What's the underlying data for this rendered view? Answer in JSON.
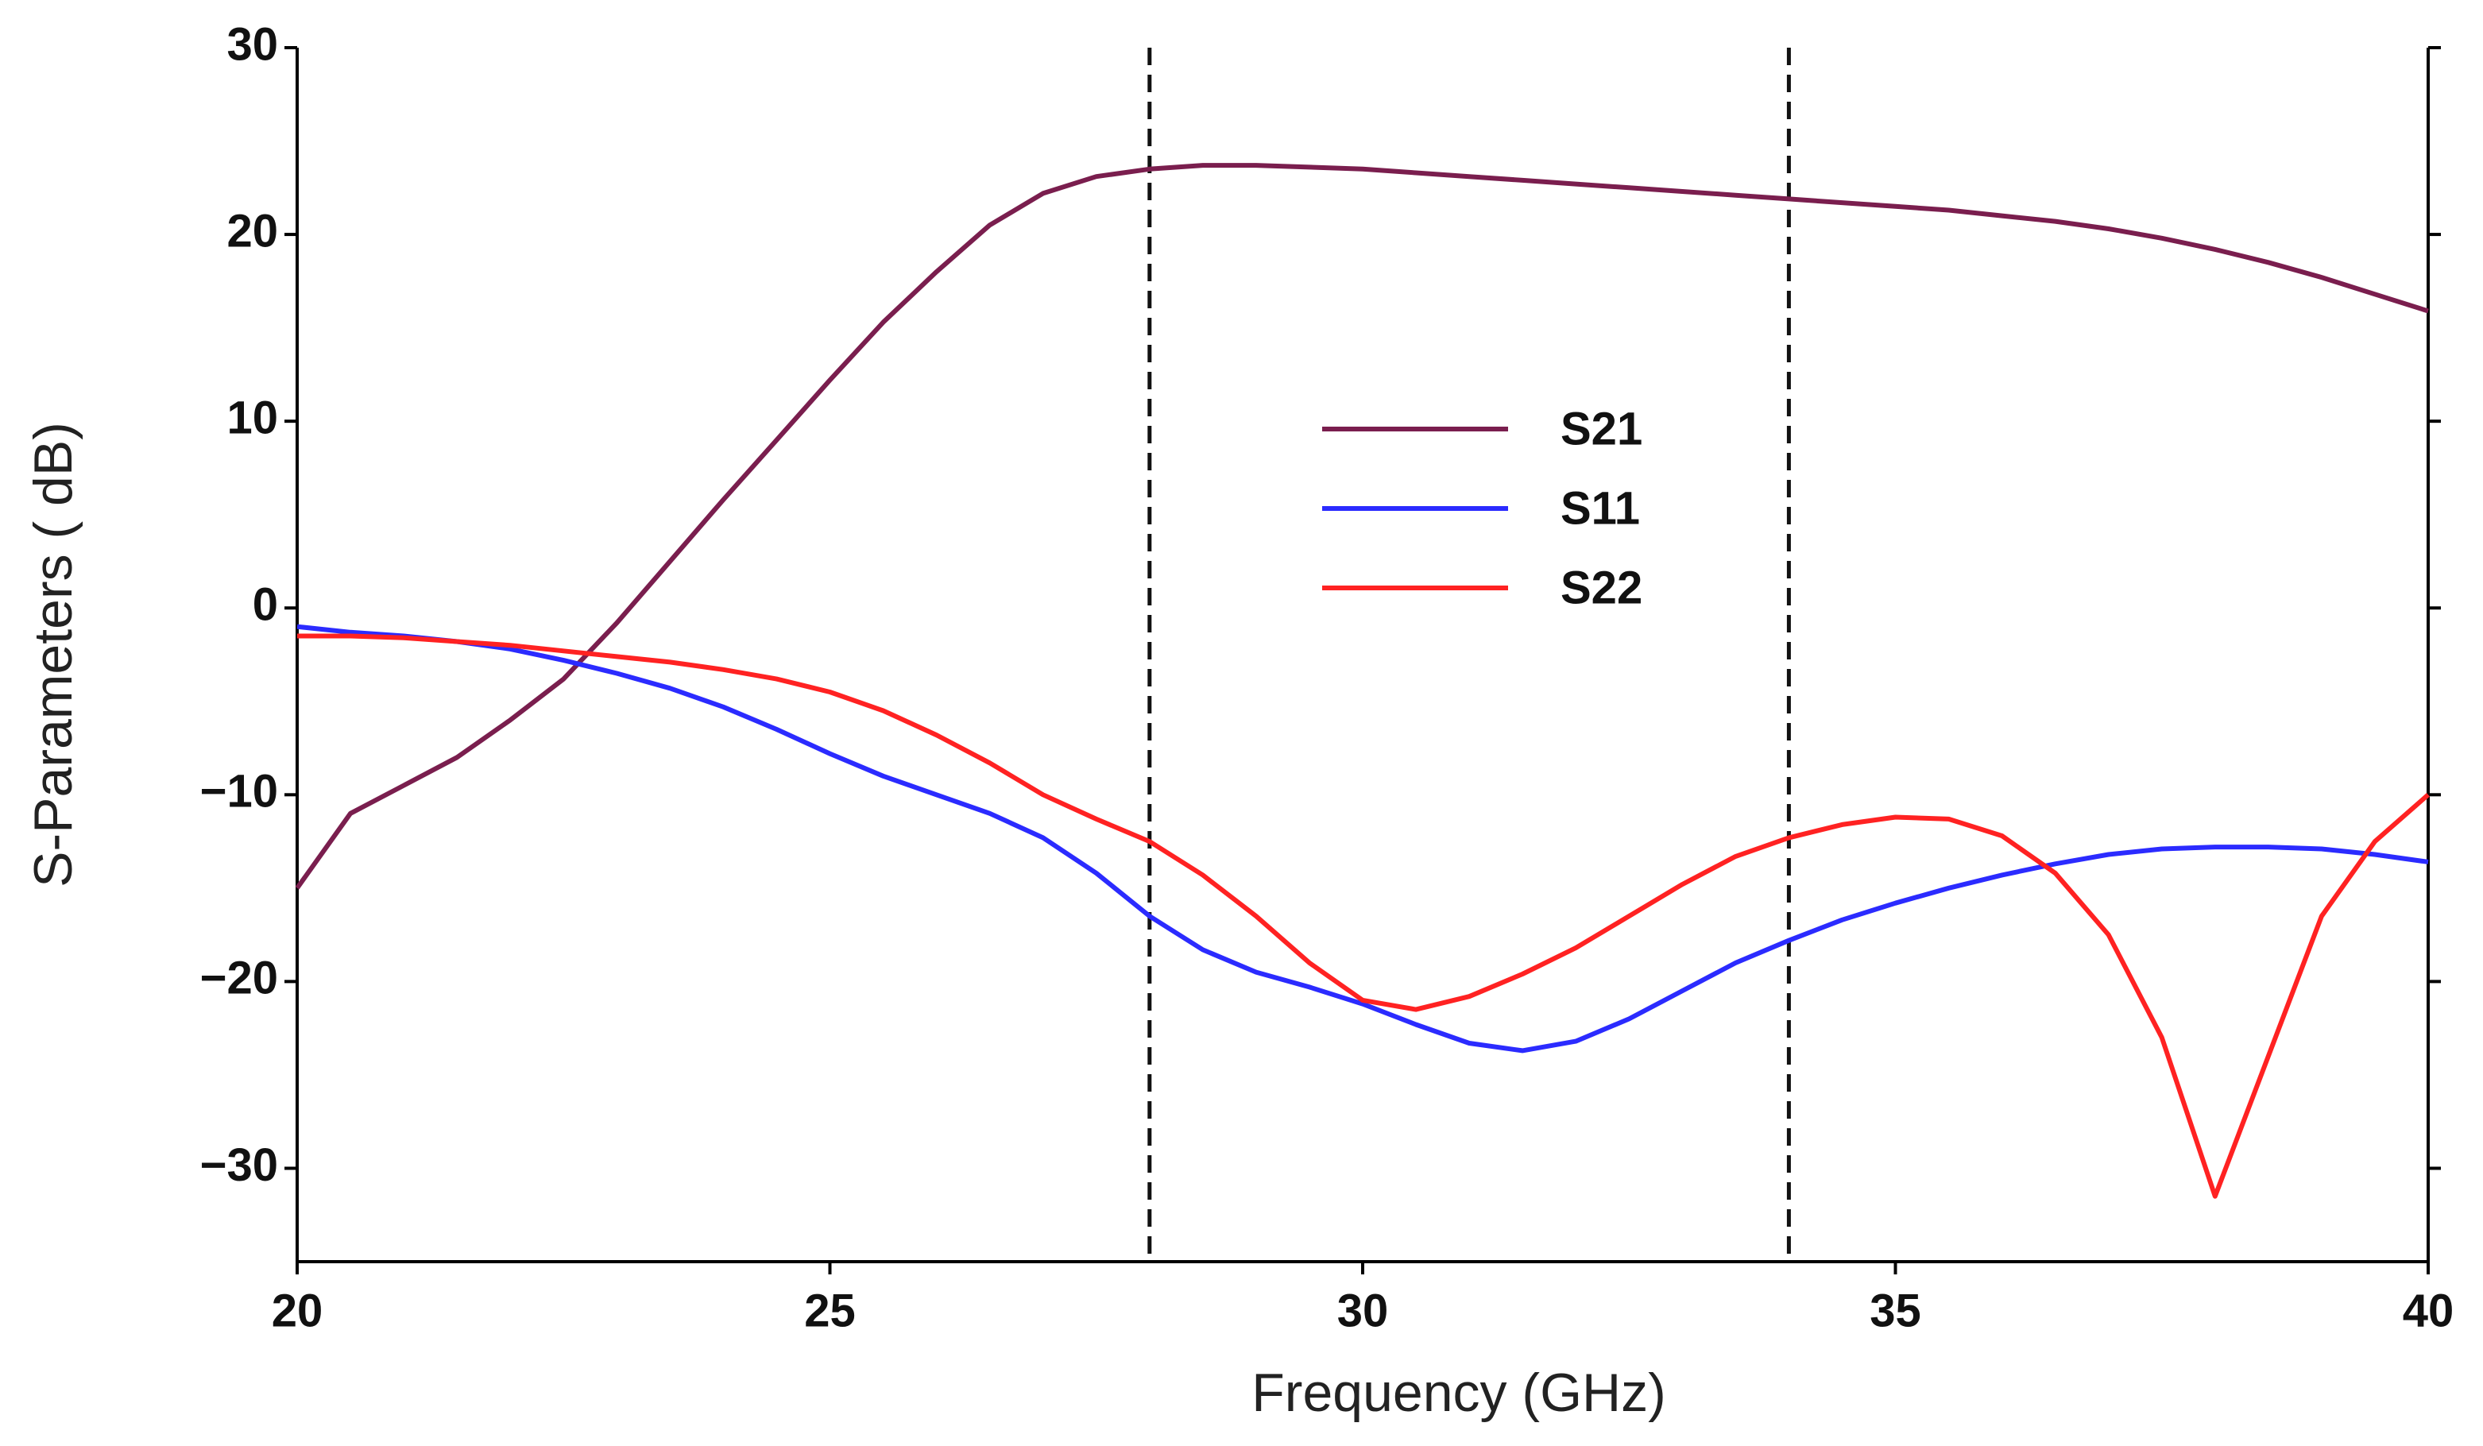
{
  "chart_data": {
    "type": "line",
    "x_label": "Frequency (GHz)",
    "y_label": "S-Parameters ( dB)",
    "x": [
      20,
      20.5,
      21,
      21.5,
      22,
      22.5,
      23,
      23.5,
      24,
      24.5,
      25,
      25.5,
      26,
      26.5,
      27,
      27.5,
      28,
      28.5,
      29,
      29.5,
      30,
      30.5,
      31,
      31.5,
      32,
      32.5,
      33,
      33.5,
      34,
      34.5,
      35,
      35.5,
      36,
      36.5,
      37,
      37.5,
      38,
      38.5,
      39,
      39.5,
      40
    ],
    "series": [
      {
        "name": "S21",
        "color": "#7a1e4e",
        "values": [
          -15,
          -11,
          -9.5,
          -8,
          -6,
          -3.8,
          -0.8,
          2.5,
          5.8,
          9,
          12.2,
          15.3,
          18,
          20.5,
          22.2,
          23.1,
          23.5,
          23.7,
          23.7,
          23.6,
          23.5,
          23.3,
          23.1,
          22.9,
          22.7,
          22.5,
          22.3,
          22.1,
          21.9,
          21.7,
          21.5,
          21.3,
          21,
          20.7,
          20.3,
          19.8,
          19.2,
          18.5,
          17.7,
          16.8,
          15.9
        ]
      },
      {
        "name": "S11",
        "color": "#2b2bff",
        "values": [
          -1,
          -1.3,
          -1.5,
          -1.8,
          -2.2,
          -2.8,
          -3.5,
          -4.3,
          -5.3,
          -6.5,
          -7.8,
          -9,
          -10,
          -11,
          -12.3,
          -14.2,
          -16.5,
          -18.3,
          -19.5,
          -20.3,
          -21.2,
          -22.3,
          -23.3,
          -23.7,
          -23.2,
          -22,
          -20.5,
          -19,
          -17.8,
          -16.7,
          -15.8,
          -15,
          -14.3,
          -13.7,
          -13.2,
          -12.9,
          -12.8,
          -12.8,
          -12.9,
          -13.2,
          -13.6
        ]
      },
      {
        "name": "S22",
        "color": "#ff2222",
        "values": [
          -1.5,
          -1.5,
          -1.6,
          -1.8,
          -2,
          -2.3,
          -2.6,
          -2.9,
          -3.3,
          -3.8,
          -4.5,
          -5.5,
          -6.8,
          -8.3,
          -10,
          -11.3,
          -12.5,
          -14.3,
          -16.5,
          -19,
          -21,
          -21.5,
          -20.8,
          -19.6,
          -18.2,
          -16.5,
          -14.8,
          -13.3,
          -12.3,
          -11.6,
          -11.2,
          -11.3,
          -12.2,
          -14.2,
          -17.5,
          -23,
          -31.5,
          -24,
          -16.5,
          -12.5,
          -10
        ]
      }
    ],
    "xlim": [
      20,
      40
    ],
    "xticks": [
      20,
      25,
      30,
      35,
      40
    ],
    "ylim": [
      -35,
      30
    ],
    "yticks": [
      {
        "value": -30,
        "label": "−30"
      },
      {
        "value": -20,
        "label": "−20"
      },
      {
        "value": -10,
        "label": "−10"
      },
      0,
      10,
      20,
      30
    ],
    "vlines": [
      28,
      34
    ],
    "grid": false,
    "legend": "center"
  }
}
